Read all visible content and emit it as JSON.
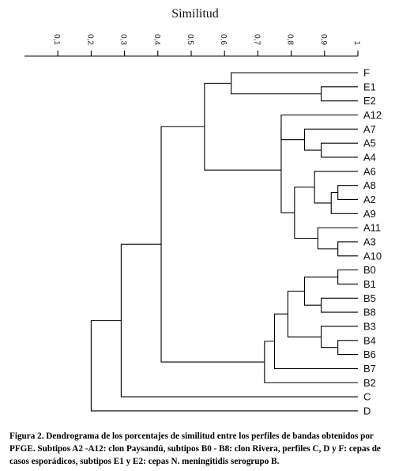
{
  "chart_data": {
    "type": "dendrogram",
    "title": "Similitud",
    "xlim": [
      0,
      1
    ],
    "ticks": [
      {
        "value": 0.1,
        "label": "0,1"
      },
      {
        "value": 0.2,
        "label": "0,2"
      },
      {
        "value": 0.3,
        "label": "0,3"
      },
      {
        "value": 0.4,
        "label": "0,4"
      },
      {
        "value": 0.5,
        "label": "0,5"
      },
      {
        "value": 0.6,
        "label": "0,6"
      },
      {
        "value": 0.7,
        "label": "0,7"
      },
      {
        "value": 0.8,
        "label": "0,8"
      },
      {
        "value": 0.9,
        "label": "0,9"
      },
      {
        "value": 1.0,
        "label": "1"
      }
    ],
    "leaves": [
      "F",
      "E1",
      "E2",
      "A12",
      "A7",
      "A5",
      "A4",
      "A6",
      "A8",
      "A2",
      "A9",
      "A11",
      "A3",
      "A10",
      "B0",
      "B1",
      "B5",
      "B8",
      "B3",
      "B4",
      "B6",
      "B7",
      "B2",
      "C",
      "D"
    ],
    "merges": [
      {
        "a": "E1",
        "b": "E2",
        "sim": 0.89
      },
      {
        "a": "E1+E2",
        "b": "F",
        "sim": 0.62
      },
      {
        "a": "A5",
        "b": "A4",
        "sim": 0.89
      },
      {
        "a": "A7",
        "b": "A5+A4",
        "sim": 0.84
      },
      {
        "a": "A12",
        "b": "A7+A5+A4",
        "sim": 0.77
      },
      {
        "a": "A8",
        "b": "A2",
        "sim": 0.94
      },
      {
        "a": "A8+A2",
        "b": "A9",
        "sim": 0.92
      },
      {
        "a": "A6",
        "b": "A8+A2+A9",
        "sim": 0.87
      },
      {
        "a": "A3",
        "b": "A10",
        "sim": 0.94
      },
      {
        "a": "A11",
        "b": "A3+A10",
        "sim": 0.88
      },
      {
        "a": "A6..A9",
        "b": "A11..A10",
        "sim": 0.81
      },
      {
        "a": "A12..A4",
        "b": "A6..A10",
        "sim": 0.77
      },
      {
        "a": "F+E1+E2",
        "b": "A12..A10",
        "sim": 0.54
      },
      {
        "a": "B0",
        "b": "B1",
        "sim": 0.94
      },
      {
        "a": "B5",
        "b": "B8",
        "sim": 0.89
      },
      {
        "a": "B0+B1",
        "b": "B5+B8",
        "sim": 0.84
      },
      {
        "a": "B4",
        "b": "B6",
        "sim": 0.94
      },
      {
        "a": "B3",
        "b": "B4+B6",
        "sim": 0.89
      },
      {
        "a": "B0..B8",
        "b": "B3..B6",
        "sim": 0.79
      },
      {
        "a": "B0..B6",
        "b": "B7",
        "sim": 0.75
      },
      {
        "a": "B0..B7",
        "b": "B2",
        "sim": 0.72
      },
      {
        "a": "F..A10",
        "b": "B0..B2",
        "sim": 0.41
      },
      {
        "a": "F..B2",
        "b": "C",
        "sim": 0.29
      },
      {
        "a": "F..C",
        "b": "D",
        "sim": 0.2
      }
    ]
  },
  "caption": "Figura 2. Dendrograma de los porcentajes de similitud entre los perfiles de bandas obtenidos por PFGE. Subtipos A2 -A12: clon Paysandú, subtipos B0 - B8: clon Rivera, perfiles C, D y F: cepas de casos esporádicos, subtipos E1 y E2: cepas N. meningitidis serogrupo B."
}
